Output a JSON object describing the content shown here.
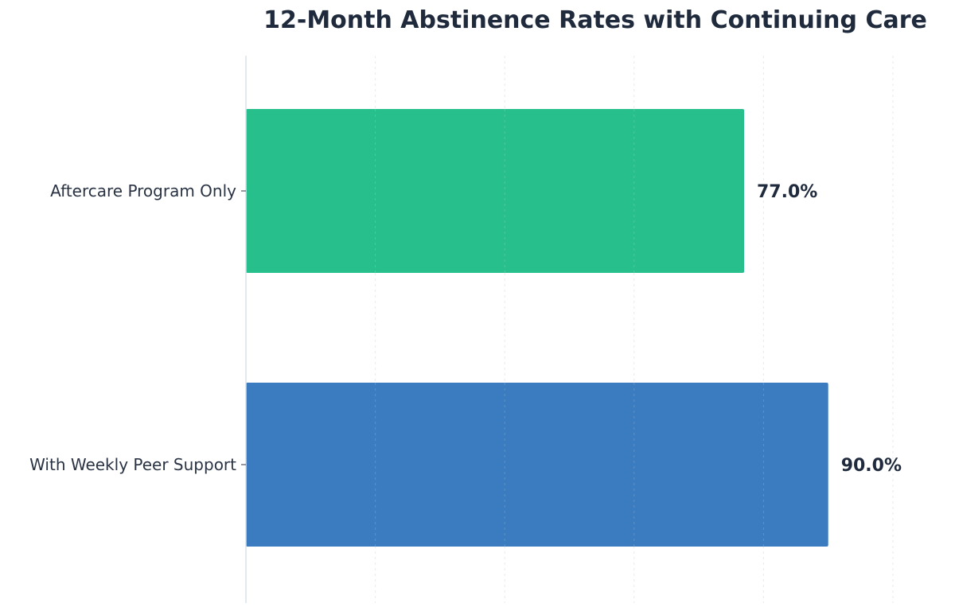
{
  "chart_data": {
    "type": "bar",
    "orientation": "horizontal",
    "title": "12-Month Abstinence Rates with Continuing Care",
    "xlabel": "",
    "ylabel": "",
    "categories": [
      "Aftercare Program Only",
      "With Weekly Peer Support"
    ],
    "values": [
      77.0,
      90.0
    ],
    "value_labels": [
      "77.0%",
      "90.0%"
    ],
    "colors": [
      "#27bf8c",
      "#3b7bbf"
    ],
    "xlim": [
      0,
      100
    ],
    "grid": true,
    "legend": "none"
  }
}
